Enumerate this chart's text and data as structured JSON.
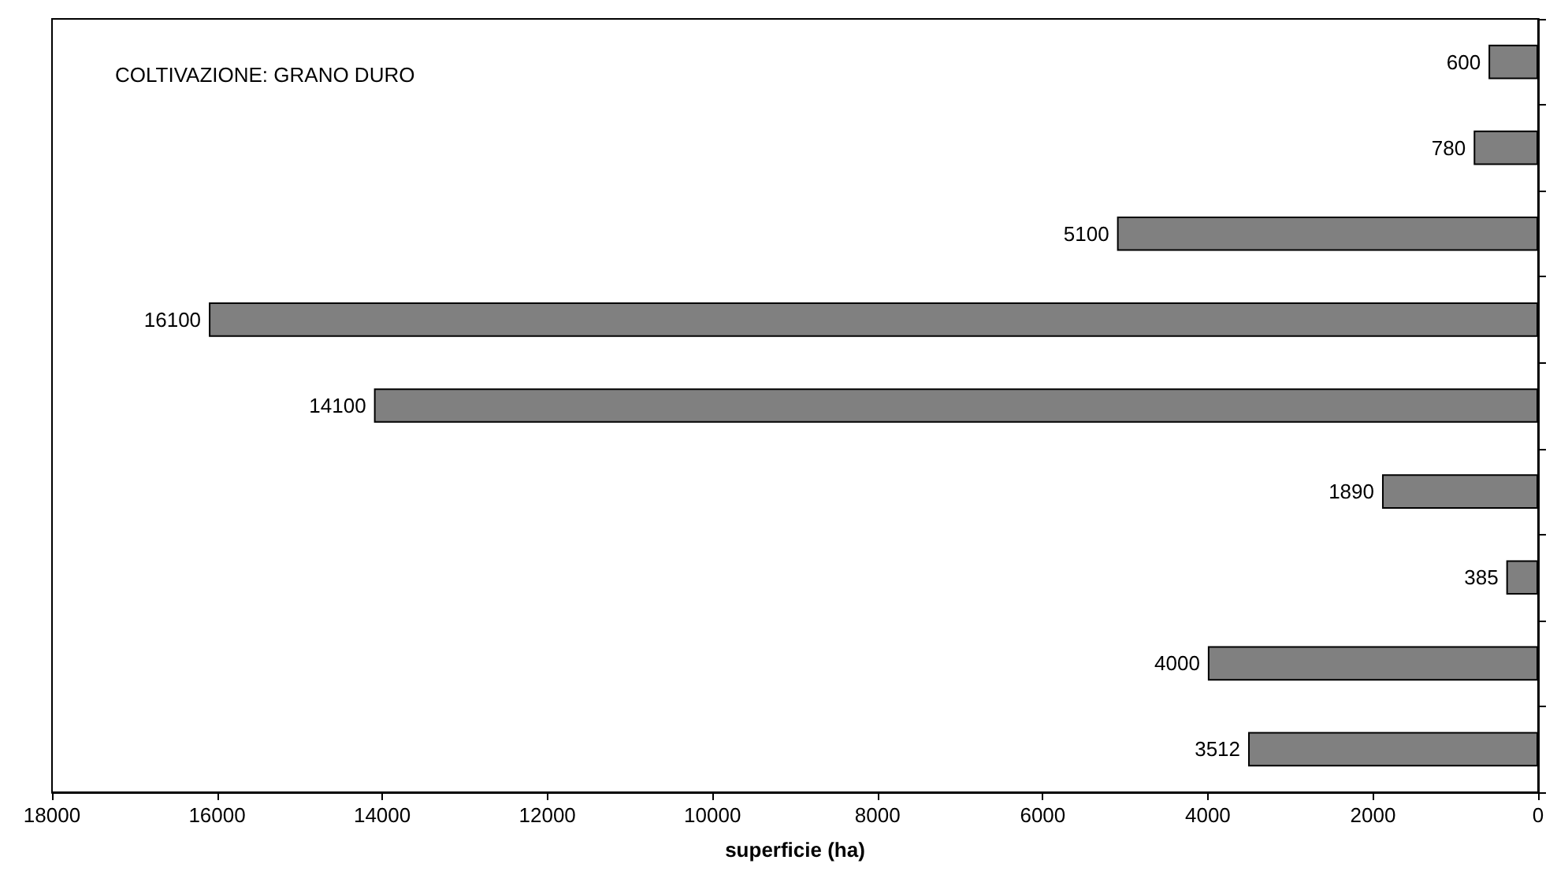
{
  "chart_data": {
    "type": "bar",
    "orientation": "horizontal",
    "title": "COLTIVAZIONE: GRANO DURO",
    "xlabel": "superficie (ha)",
    "categories": [
      null,
      null,
      null,
      null,
      null,
      null,
      null,
      null,
      null
    ],
    "values": [
      600,
      780,
      5100,
      16100,
      14100,
      1890,
      385,
      4000,
      3512
    ],
    "color": "#808080",
    "data_labels": true,
    "grid": false,
    "xlim": [
      18000,
      0
    ],
    "xticks": [
      18000,
      16000,
      14000,
      12000,
      10000,
      8000,
      6000,
      4000,
      2000,
      0
    ]
  }
}
